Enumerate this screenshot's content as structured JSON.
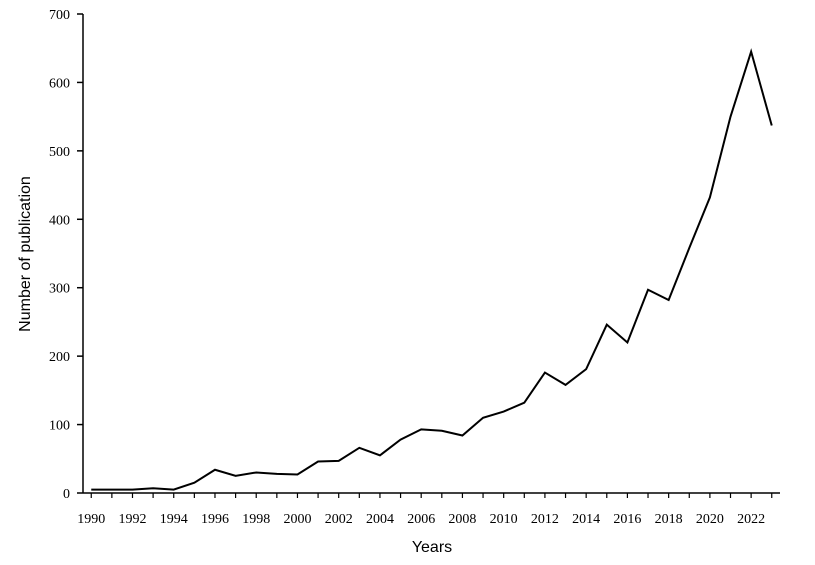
{
  "chart_data": {
    "type": "line",
    "title": "",
    "xlabel": "Years",
    "ylabel": "Number of publication",
    "xlim": [
      1990,
      2023
    ],
    "ylim": [
      0,
      700
    ],
    "yticks": [
      0,
      100,
      200,
      300,
      400,
      500,
      600,
      700
    ],
    "xticks": [
      1990,
      1992,
      1994,
      1996,
      1998,
      2000,
      2002,
      2004,
      2006,
      2008,
      2010,
      2012,
      2014,
      2016,
      2018,
      2020,
      2022
    ],
    "grid": false,
    "line_color": "#000000",
    "series": [
      {
        "x": [
          1990,
          1991,
          1992,
          1993,
          1994,
          1995,
          1996,
          1997,
          1998,
          1999,
          2000,
          2001,
          2002,
          2003,
          2004,
          2005,
          2006,
          2007,
          2008,
          2009,
          2010,
          2011,
          2012,
          2013,
          2014,
          2015,
          2016,
          2017,
          2018,
          2019,
          2020,
          2021,
          2022,
          2023
        ],
        "values": [
          5,
          5,
          5,
          7,
          5,
          15,
          34,
          25,
          30,
          28,
          27,
          46,
          47,
          66,
          55,
          78,
          93,
          91,
          84,
          110,
          119,
          132,
          176,
          158,
          181,
          246,
          220,
          297,
          282,
          358,
          432,
          550,
          645,
          537
        ]
      }
    ]
  }
}
